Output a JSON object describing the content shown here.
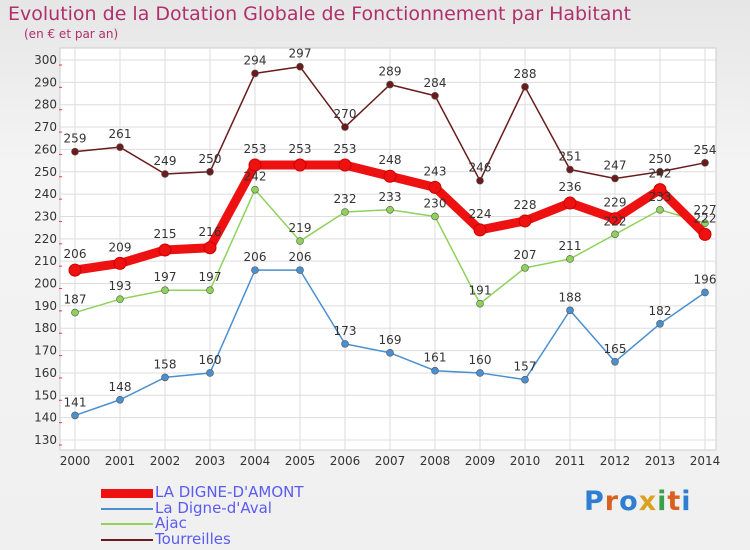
{
  "title": "Evolution de la Dotation Globale de Fonctionnement par Habitant",
  "subtitle": "(en € et par an)",
  "brand": "Proxiti",
  "chart_data": {
    "type": "line",
    "title": "Evolution de la Dotation Globale de Fonctionnement par Habitant",
    "subtitle": "(en € et par an)",
    "xlabel": "",
    "ylabel": "",
    "x": [
      "2000",
      "2001",
      "2002",
      "2003",
      "2004",
      "2005",
      "2006",
      "2007",
      "2008",
      "2009",
      "2010",
      "2011",
      "2012",
      "2013",
      "2014"
    ],
    "ylim": [
      130,
      300
    ],
    "yticks": [
      130,
      140,
      150,
      160,
      170,
      180,
      190,
      200,
      210,
      220,
      230,
      240,
      250,
      260,
      270,
      280,
      290,
      300
    ],
    "grid": true,
    "legend_position": "bottom-left",
    "series": [
      {
        "name": "LA DIGNE-D'AMONT",
        "color": "#ee1111",
        "values": [
          206,
          209,
          215,
          216,
          253,
          253,
          253,
          248,
          243,
          224,
          228,
          236,
          229,
          242,
          222
        ]
      },
      {
        "name": "La Digne-d'Aval",
        "color": "#4a8fd0",
        "values": [
          141,
          148,
          158,
          160,
          206,
          206,
          173,
          169,
          161,
          160,
          157,
          188,
          165,
          182,
          196
        ]
      },
      {
        "name": "Ajac",
        "color": "#8ed25a",
        "values": [
          187,
          193,
          197,
          197,
          242,
          219,
          232,
          233,
          230,
          191,
          207,
          211,
          222,
          233,
          227
        ]
      },
      {
        "name": "Tourreilles",
        "color": "#6a1b1b",
        "values": [
          259,
          261,
          249,
          250,
          294,
          297,
          270,
          289,
          284,
          246,
          288,
          251,
          247,
          250,
          254
        ]
      }
    ]
  }
}
